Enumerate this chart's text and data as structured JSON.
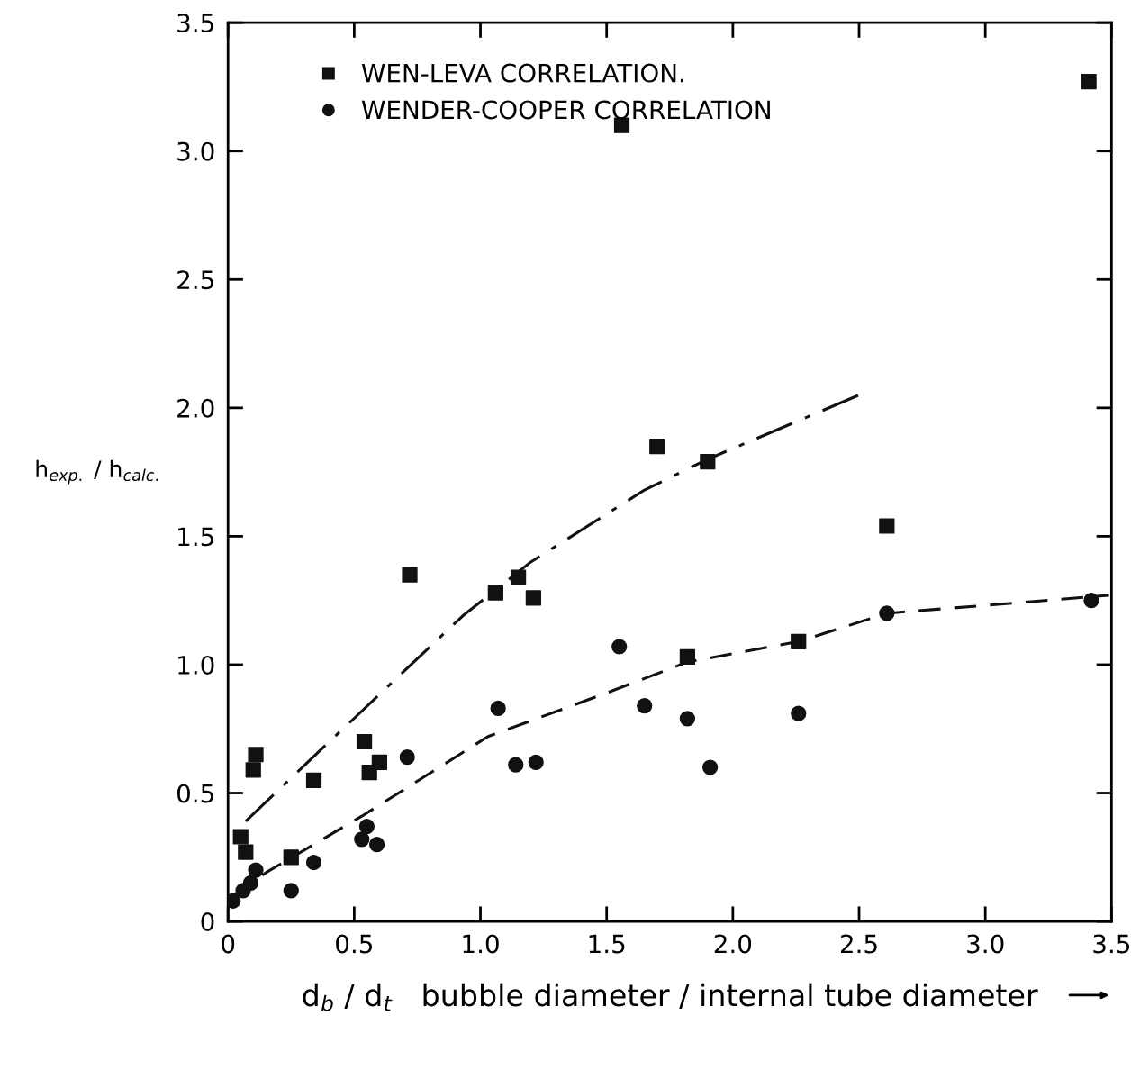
{
  "chart_data": {
    "type": "scatter",
    "xlabel": "d$_{b}$ / d$_{t}$   bubble diameter / internal tube diameter",
    "ylabel": "h$_{exp.}$ / h$_{calc.}$",
    "xlim": [
      0,
      3.5
    ],
    "ylim": [
      0,
      3.5
    ],
    "xticks": [
      0,
      0.5,
      {
        "value": 1.0,
        "label": "1.0"
      },
      1.5,
      {
        "value": 2.0,
        "label": "2.0"
      },
      2.5,
      {
        "value": 3.0,
        "label": "3.0"
      },
      3.5
    ],
    "yticks": [
      0,
      0.5,
      {
        "value": 1.0,
        "label": "1.0"
      },
      1.5,
      {
        "value": 2.0,
        "label": "2.0"
      },
      2.5,
      {
        "value": 3.0,
        "label": "3.0"
      },
      3.5
    ],
    "grid": false,
    "legend": "top left",
    "series": [
      {
        "name": "WEN-LEVA CORRELATION.",
        "marker": "square",
        "color": "#111111",
        "x": [
          0.05,
          0.07,
          0.1,
          0.11,
          0.25,
          0.34,
          0.54,
          0.56,
          0.6,
          0.72,
          1.06,
          1.15,
          1.21,
          1.56,
          1.7,
          1.9,
          1.82,
          2.26,
          2.61,
          3.41
        ],
        "values": [
          0.33,
          0.27,
          0.59,
          0.65,
          0.25,
          0.55,
          0.7,
          0.58,
          0.62,
          1.35,
          1.28,
          1.34,
          1.26,
          3.1,
          1.85,
          1.79,
          1.03,
          1.09,
          1.54,
          3.27
        ]
      },
      {
        "name": "WENDER-COOPER CORRELATION",
        "marker": "circle",
        "color": "#111111",
        "x": [
          0.02,
          0.06,
          0.09,
          0.11,
          0.25,
          0.34,
          0.55,
          0.53,
          0.59,
          0.71,
          1.07,
          1.14,
          1.22,
          1.55,
          1.65,
          1.82,
          1.91,
          2.26,
          2.61,
          3.42
        ],
        "values": [
          0.08,
          0.12,
          0.15,
          0.2,
          0.12,
          0.23,
          0.37,
          0.32,
          0.3,
          0.64,
          0.83,
          0.61,
          0.62,
          1.07,
          0.84,
          0.79,
          0.6,
          0.81,
          1.2,
          1.25
        ]
      },
      {
        "type": "line",
        "line_style": "dashdot",
        "color": "#111111",
        "x": [
          0.07,
          0.38,
          0.93,
          1.2,
          1.65,
          1.9,
          2.5
        ],
        "values": [
          0.39,
          0.68,
          1.19,
          1.4,
          1.68,
          1.8,
          2.05
        ]
      },
      {
        "type": "line",
        "line_style": "dashed",
        "color": "#111111",
        "x": [
          0.02,
          0.15,
          0.53,
          1.03,
          1.5,
          1.82,
          2.26,
          2.61,
          3.49
        ],
        "values": [
          0.1,
          0.19,
          0.41,
          0.72,
          0.89,
          1.01,
          1.09,
          1.2,
          1.27
        ]
      }
    ]
  }
}
